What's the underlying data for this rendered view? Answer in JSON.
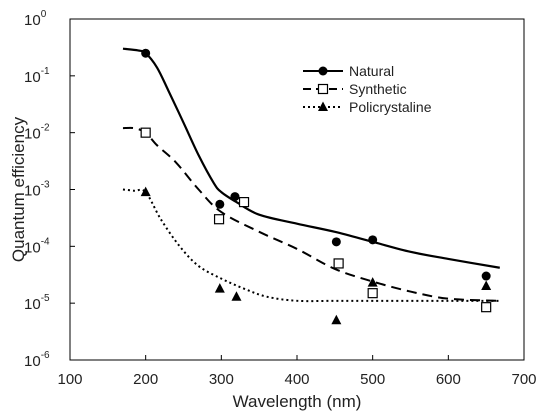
{
  "chart_data": {
    "type": "line",
    "xlabel": "Wavelength (nm)",
    "ylabel": "Quantum efficiency",
    "xlim": [
      100,
      700
    ],
    "ylim_log10": [
      -6,
      0
    ],
    "y_scale": "log",
    "x_ticks": [
      "100",
      "200",
      "300",
      "400",
      "500",
      "600",
      "700"
    ],
    "y_ticks": [
      {
        "base": "10",
        "exp": "0"
      },
      {
        "base": "10",
        "exp": "-1"
      },
      {
        "base": "10",
        "exp": "-2"
      },
      {
        "base": "10",
        "exp": "-3"
      },
      {
        "base": "10",
        "exp": "-4"
      },
      {
        "base": "10",
        "exp": "-5"
      },
      {
        "base": "10",
        "exp": "-6"
      }
    ],
    "grid": false,
    "legend_position": "top-right",
    "series": [
      {
        "name": "Natural",
        "line_style": "solid",
        "marker": "filled-circle",
        "color": "#000000",
        "curve": [
          [
            170,
            0.3
          ],
          [
            190,
            0.28
          ],
          [
            200,
            0.25
          ],
          [
            215,
            0.14
          ],
          [
            230,
            0.055
          ],
          [
            250,
            0.015
          ],
          [
            270,
            0.004
          ],
          [
            290,
            0.0013
          ],
          [
            300,
            0.0009
          ],
          [
            320,
            0.0006
          ],
          [
            350,
            0.00036
          ],
          [
            400,
            0.00025
          ],
          [
            450,
            0.00018
          ],
          [
            500,
            0.00012
          ],
          [
            550,
            8e-05
          ],
          [
            600,
            6e-05
          ],
          [
            668,
            4.2e-05
          ]
        ],
        "points": [
          [
            200,
            0.25
          ],
          [
            298,
            0.00055
          ],
          [
            318,
            0.00075
          ],
          [
            452,
            0.00012
          ],
          [
            500,
            0.00013
          ],
          [
            650,
            3e-05
          ]
        ]
      },
      {
        "name": "Synthetic",
        "line_style": "dashed",
        "marker": "open-square",
        "color": "#000000",
        "curve": [
          [
            170,
            0.012
          ],
          [
            185,
            0.012
          ],
          [
            200,
            0.01
          ],
          [
            215,
            0.006
          ],
          [
            240,
            0.003
          ],
          [
            270,
            0.001
          ],
          [
            300,
            0.0004
          ],
          [
            350,
            0.00018
          ],
          [
            400,
            9e-05
          ],
          [
            450,
            4e-05
          ],
          [
            500,
            2.4e-05
          ],
          [
            550,
            1.6e-05
          ],
          [
            600,
            1.2e-05
          ],
          [
            668,
            1.1e-05
          ]
        ],
        "points": [
          [
            200,
            0.01
          ],
          [
            297,
            0.0003
          ],
          [
            330,
            0.0006
          ],
          [
            455,
            5e-05
          ],
          [
            500,
            1.5e-05
          ],
          [
            650,
            8.5e-06
          ]
        ]
      },
      {
        "name": "Policrystaline",
        "line_style": "dotted",
        "marker": "filled-triangle",
        "color": "#000000",
        "curve": [
          [
            170,
            0.001
          ],
          [
            185,
            0.00095
          ],
          [
            200,
            0.0009
          ],
          [
            220,
            0.0003
          ],
          [
            245,
            0.0001
          ],
          [
            270,
            4.5e-05
          ],
          [
            300,
            2.7e-05
          ],
          [
            330,
            1.8e-05
          ],
          [
            360,
            1.3e-05
          ],
          [
            400,
            1.1e-05
          ],
          [
            450,
            1.1e-05
          ],
          [
            500,
            1.1e-05
          ],
          [
            600,
            1.1e-05
          ],
          [
            668,
            1.1e-05
          ]
        ],
        "points": [
          [
            200,
            0.0009
          ],
          [
            298,
            1.8e-05
          ],
          [
            320,
            1.3e-05
          ],
          [
            452,
            5e-06
          ],
          [
            500,
            2.3e-05
          ],
          [
            650,
            2e-05
          ]
        ]
      }
    ]
  }
}
